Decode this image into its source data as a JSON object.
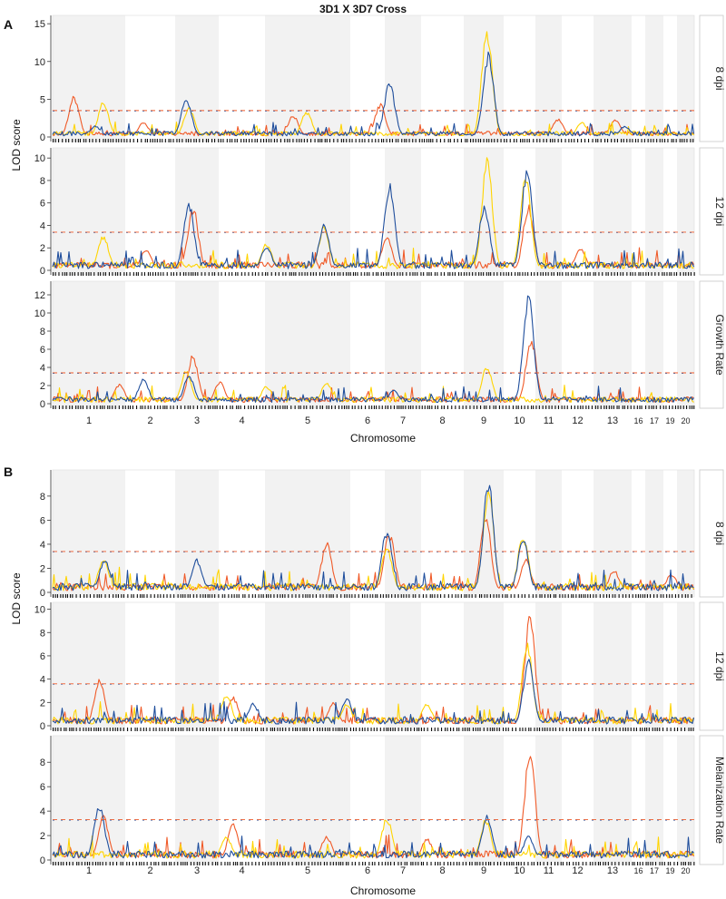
{
  "figure": {
    "title": "3D1 X 3D7 Cross",
    "panel_letters": [
      "A",
      "B"
    ],
    "xlabel": "Chromosome",
    "ylabel": "LOD score"
  },
  "colors": {
    "blue": "#1f4e9c",
    "yellow": "#ffd400",
    "orange": "#f05a28",
    "band": "#f2f2f2",
    "axis": "#333333"
  },
  "chromosome_labels": [
    "1",
    "2",
    "3",
    "4",
    "5",
    "6",
    "7",
    "8",
    "9",
    "10",
    "11",
    "12",
    "13",
    "16",
    "17",
    "19",
    "20"
  ],
  "chart_data": [
    {
      "type": "line",
      "panel": "A",
      "facet": "8 dpi",
      "ylim": [
        0,
        15.5
      ],
      "yticks": [
        0,
        5,
        10,
        15
      ],
      "threshold": 3.5,
      "peaks": {
        "blue": [
          [
            3.2,
            1.5
          ],
          [
            10.0,
            5.2
          ],
          [
            25.2,
            7.5
          ],
          [
            32.6,
            11.5
          ],
          [
            42.8,
            1.5
          ]
        ],
        "yellow": [
          [
            3.8,
            4.8
          ],
          [
            10.2,
            4.0
          ],
          [
            19.0,
            3.5
          ],
          [
            32.5,
            14.8
          ],
          [
            39.6,
            2.0
          ]
        ],
        "orange": [
          [
            1.6,
            5.5
          ],
          [
            6.8,
            2.0
          ],
          [
            18.0,
            3.0
          ],
          [
            24.5,
            4.5
          ],
          [
            37.8,
            2.5
          ],
          [
            42.1,
            2.5
          ]
        ]
      }
    },
    {
      "type": "line",
      "panel": "A",
      "facet": "12 dpi",
      "ylim": [
        0,
        10.5
      ],
      "yticks": [
        0,
        2,
        4,
        6,
        8,
        10
      ],
      "threshold": 3.4,
      "peaks": {
        "blue": [
          [
            10.2,
            6.2
          ],
          [
            20.3,
            4.2
          ],
          [
            25.2,
            8.0
          ],
          [
            32.3,
            6.0
          ],
          [
            35.5,
            9.5
          ],
          [
            16.0,
            2.2
          ]
        ],
        "yellow": [
          [
            3.8,
            3.2
          ],
          [
            20.3,
            4.0
          ],
          [
            32.5,
            10.3
          ],
          [
            35.4,
            8.8
          ],
          [
            16.0,
            2.5
          ]
        ],
        "orange": [
          [
            10.5,
            5.8
          ],
          [
            25.0,
            3.0
          ],
          [
            35.6,
            6.0
          ],
          [
            7.0,
            2.0
          ],
          [
            39.5,
            2.0
          ]
        ]
      }
    },
    {
      "type": "line",
      "panel": "A",
      "facet": "Growth Rate",
      "ylim": [
        0,
        13
      ],
      "yticks": [
        0,
        2,
        4,
        6,
        8,
        10,
        12
      ],
      "threshold": 3.4,
      "peaks": {
        "blue": [
          [
            6.8,
            2.8
          ],
          [
            10.2,
            3.2
          ],
          [
            35.6,
            12.6
          ],
          [
            25.5,
            1.5
          ]
        ],
        "yellow": [
          [
            10.0,
            3.7
          ],
          [
            32.5,
            4.3
          ],
          [
            20.5,
            2.5
          ],
          [
            16.0,
            2.0
          ]
        ],
        "orange": [
          [
            10.5,
            5.5
          ],
          [
            12.5,
            2.5
          ],
          [
            35.8,
            7.5
          ],
          [
            5.0,
            2.2
          ]
        ]
      }
    },
    {
      "type": "line",
      "panel": "B",
      "facet": "8 dpi",
      "ylim": [
        0,
        9.8
      ],
      "yticks": [
        0,
        2,
        4,
        6,
        8
      ],
      "threshold": 3.4,
      "peaks": {
        "blue": [
          [
            3.9,
            2.8
          ],
          [
            10.8,
            2.8
          ],
          [
            25.0,
            5.3
          ],
          [
            32.6,
            9.5
          ],
          [
            35.2,
            4.5
          ]
        ],
        "yellow": [
          [
            3.8,
            2.9
          ],
          [
            32.6,
            9.0
          ],
          [
            35.2,
            4.9
          ],
          [
            25.0,
            4.0
          ]
        ],
        "orange": [
          [
            20.5,
            4.3
          ],
          [
            25.2,
            5.1
          ],
          [
            32.4,
            6.5
          ],
          [
            35.4,
            2.8
          ],
          [
            42.0,
            1.9
          ],
          [
            46.3,
            1.6
          ]
        ]
      }
    },
    {
      "type": "line",
      "panel": "B",
      "facet": "12 dpi",
      "ylim": [
        0,
        10.2
      ],
      "yticks": [
        0,
        2,
        4,
        6,
        8,
        10
      ],
      "threshold": 3.6,
      "peaks": {
        "blue": [
          [
            35.6,
            5.8
          ],
          [
            15.0,
            2.0
          ],
          [
            22.0,
            2.5
          ]
        ],
        "yellow": [
          [
            35.5,
            7.5
          ],
          [
            13.0,
            2.8
          ],
          [
            22.0,
            2.0
          ],
          [
            28.0,
            2.0
          ]
        ],
        "orange": [
          [
            3.5,
            4.0
          ],
          [
            35.7,
            9.8
          ],
          [
            13.5,
            2.5
          ],
          [
            21.0,
            2.0
          ]
        ]
      }
    },
    {
      "type": "line",
      "panel": "B",
      "facet": "Melanization Rate",
      "ylim": [
        0,
        9.8
      ],
      "yticks": [
        0,
        2,
        4,
        6,
        8
      ],
      "threshold": 3.3,
      "peaks": {
        "blue": [
          [
            3.5,
            4.8
          ],
          [
            32.5,
            3.8
          ],
          [
            35.6,
            2.0
          ]
        ],
        "yellow": [
          [
            25.0,
            3.6
          ],
          [
            32.4,
            3.4
          ],
          [
            13.0,
            2.0
          ]
        ],
        "orange": [
          [
            3.8,
            3.8
          ],
          [
            13.5,
            3.0
          ],
          [
            35.7,
            9.3
          ],
          [
            20.5,
            2.0
          ],
          [
            28.0,
            1.8
          ]
        ]
      }
    }
  ]
}
